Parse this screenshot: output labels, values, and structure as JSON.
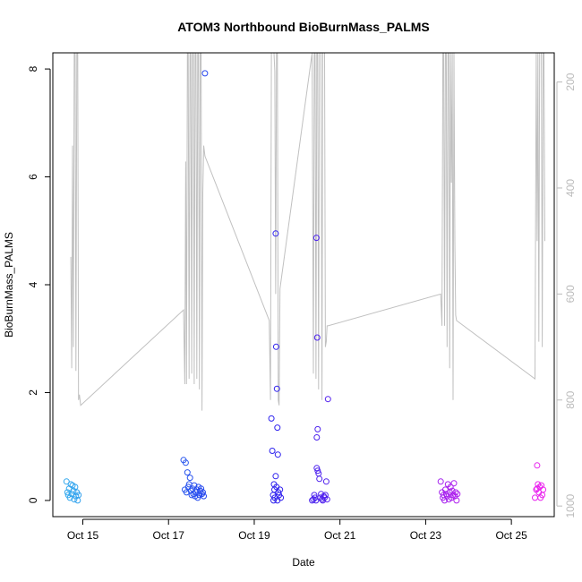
{
  "chart_data": {
    "type": "scatter",
    "title": "ATOM3 Northbound BioBurnMass_PALMS",
    "xlabel": "Date",
    "ylabel": "BioBurnMass_PALMS",
    "x_unit": "days since Oct 14 00:00",
    "xlim": [
      0.3,
      12.0
    ],
    "ylim": [
      -0.3,
      8.3
    ],
    "x_ticks": [
      {
        "value": 1,
        "label": "Oct 15"
      },
      {
        "value": 3,
        "label": "Oct 17"
      },
      {
        "value": 5,
        "label": "Oct 19"
      },
      {
        "value": 7,
        "label": "Oct 21"
      },
      {
        "value": 9,
        "label": "Oct 23"
      },
      {
        "value": 11,
        "label": "Oct 25"
      }
    ],
    "y_ticks": [
      0,
      2,
      4,
      6,
      8
    ],
    "secondary_axis": {
      "description": "altitude/pressure profile (gray line), inverted",
      "lim": [
        1020,
        145
      ],
      "ticks": [
        200,
        400,
        600,
        800,
        1000
      ],
      "color": "#bbbbbb"
    },
    "colors": {
      "start": "#33aaee",
      "mid": "#2222ee",
      "end": "#ee22ee",
      "profile": "#c0c0c0",
      "frame": "#000000"
    },
    "profile_line": {
      "x": [
        0.72,
        0.74,
        0.76,
        0.78,
        0.8,
        0.82,
        0.84,
        0.86,
        0.88,
        0.9,
        0.92,
        0.95,
        3.35,
        3.38,
        3.4,
        3.42,
        3.44,
        3.46,
        3.48,
        3.5,
        3.52,
        3.54,
        3.56,
        3.58,
        3.6,
        3.62,
        3.64,
        3.66,
        3.68,
        3.7,
        3.72,
        3.74,
        3.76,
        3.78,
        3.8,
        3.82,
        3.85,
        5.35,
        5.38,
        5.4,
        5.42,
        5.44,
        5.46,
        5.48,
        5.5,
        5.52,
        5.54,
        5.56,
        5.58,
        5.6,
        6.35,
        6.38,
        6.4,
        6.42,
        6.44,
        6.46,
        6.48,
        6.5,
        6.52,
        6.54,
        6.56,
        6.58,
        6.6,
        6.62,
        6.64,
        6.66,
        6.68,
        6.7,
        6.72,
        9.35,
        9.38,
        9.4,
        9.42,
        9.44,
        9.46,
        9.48,
        9.5,
        9.52,
        9.54,
        9.56,
        9.58,
        9.6,
        9.62,
        9.64,
        9.66,
        9.68,
        9.7,
        9.72,
        11.55,
        11.58,
        11.6,
        11.62,
        11.64,
        11.66,
        11.68,
        11.7,
        11.72,
        11.74,
        11.76,
        11.78
      ],
      "y": [
        530,
        740,
        320,
        700,
        145,
        145,
        745,
        145,
        145,
        800,
        790,
        810,
        630,
        770,
        350,
        770,
        145,
        145,
        760,
        145,
        145,
        750,
        145,
        145,
        770,
        145,
        145,
        760,
        145,
        145,
        780,
        145,
        145,
        820,
        410,
        320,
        340,
        650,
        800,
        145,
        145,
        145,
        145,
        180,
        600,
        145,
        145,
        800,
        810,
        590,
        145,
        750,
        145,
        145,
        760,
        145,
        145,
        780,
        145,
        145,
        145,
        800,
        145,
        145,
        145,
        700,
        690,
        660,
        660,
        600,
        660,
        145,
        145,
        660,
        145,
        145,
        700,
        145,
        145,
        740,
        145,
        390,
        145,
        800,
        145,
        500,
        640,
        650,
        760,
        145,
        500,
        145,
        690,
        145,
        145,
        145,
        700,
        145,
        145,
        500
      ]
    },
    "series": [
      {
        "name": "BioBurnMass_PALMS",
        "x": [
          0.62,
          0.64,
          0.66,
          0.68,
          0.7,
          0.72,
          0.74,
          0.76,
          0.78,
          0.8,
          0.82,
          0.84,
          0.86,
          0.88,
          0.9,
          3.35,
          3.38,
          3.4,
          3.42,
          3.44,
          3.46,
          3.48,
          3.5,
          3.52,
          3.54,
          3.56,
          3.58,
          3.6,
          3.62,
          3.64,
          3.66,
          3.68,
          3.7,
          3.72,
          3.74,
          3.76,
          3.78,
          3.8,
          3.82,
          3.85,
          5.4,
          5.42,
          5.44,
          5.45,
          5.46,
          5.47,
          5.48,
          5.5,
          5.52,
          5.54,
          5.56,
          5.58,
          5.6,
          5.62,
          5.5,
          5.51,
          5.53,
          5.54,
          5.55,
          6.35,
          6.38,
          6.4,
          6.42,
          6.44,
          6.46,
          6.48,
          6.5,
          6.52,
          6.54,
          6.56,
          6.58,
          6.6,
          6.62,
          6.64,
          6.66,
          6.68,
          6.7,
          6.72,
          6.45,
          6.47,
          6.48,
          6.46,
          9.35,
          9.38,
          9.4,
          9.42,
          9.44,
          9.46,
          9.48,
          9.5,
          9.52,
          9.54,
          9.56,
          9.58,
          9.6,
          9.62,
          9.64,
          9.66,
          9.68,
          9.7,
          9.72,
          9.74,
          11.55,
          11.58,
          11.6,
          11.62,
          11.64,
          11.66,
          11.68,
          11.7,
          11.72,
          11.74,
          11.6
        ],
        "y": [
          0.35,
          0.15,
          0.1,
          0.22,
          0.05,
          0.3,
          0.12,
          0.28,
          0.18,
          0.02,
          0.25,
          0.08,
          0.15,
          0.0,
          0.1,
          0.75,
          0.2,
          0.7,
          0.15,
          0.52,
          0.25,
          0.3,
          0.42,
          0.18,
          0.1,
          0.22,
          0.12,
          0.28,
          0.08,
          0.15,
          0.2,
          0.05,
          0.25,
          0.1,
          0.18,
          0.22,
          0.12,
          0.15,
          0.08,
          7.92,
          1.52,
          0.92,
          0.1,
          0.0,
          0.3,
          0.2,
          0.05,
          0.45,
          0.25,
          0.0,
          0.15,
          0.1,
          0.2,
          0.05,
          4.95,
          2.85,
          2.07,
          1.35,
          0.85,
          0.0,
          0.02,
          0.1,
          0.05,
          0.0,
          0.6,
          0.55,
          0.5,
          0.4,
          0.05,
          0.12,
          0.02,
          0.0,
          0.08,
          0.05,
          0.1,
          0.35,
          0.02,
          1.88,
          4.87,
          3.02,
          1.32,
          1.17,
          0.35,
          0.15,
          0.05,
          0.1,
          0.0,
          0.2,
          0.12,
          0.08,
          0.3,
          0.02,
          0.15,
          0.25,
          0.05,
          0.18,
          0.1,
          0.32,
          0.08,
          0.15,
          0.0,
          0.12,
          0.05,
          0.2,
          0.22,
          0.3,
          0.15,
          0.25,
          0.05,
          0.28,
          0.1,
          0.2,
          0.65
        ]
      }
    ]
  }
}
